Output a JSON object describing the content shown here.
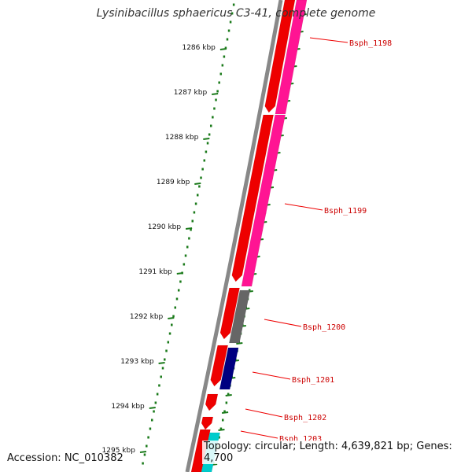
{
  "title": "Lysinibacillus sphaericus C3-41, complete genome",
  "footer": {
    "accession": "Accession: NC_010382",
    "topology": "Topology: circular; Length: 4,639,821 bp; Genes: 4,700"
  },
  "ruler": {
    "unit": "kbp",
    "labels": [
      "1286 kbp",
      "1287 kbp",
      "1288 kbp",
      "1289 kbp",
      "1290 kbp",
      "1291 kbp",
      "1292 kbp",
      "1293 kbp",
      "1294 kbp",
      "1295 kbp"
    ]
  },
  "genes": [
    {
      "name": "Bsph_1198"
    },
    {
      "name": "Bsph_1199"
    },
    {
      "name": "Bsph_1200"
    },
    {
      "name": "Bsph_1201"
    },
    {
      "name": "Bsph_1202"
    },
    {
      "name": "Bsph_1203"
    }
  ],
  "colors": {
    "forward_cds": "#ee0000",
    "reverse_cds_1": "#ff1493",
    "reverse_cds_2": "#666666",
    "reverse_cds_3": "#000080",
    "reverse_cds_4": "#00cccc",
    "tick": "#1a7a1a",
    "backbone": "#888888",
    "label_line": "#ee0000"
  }
}
